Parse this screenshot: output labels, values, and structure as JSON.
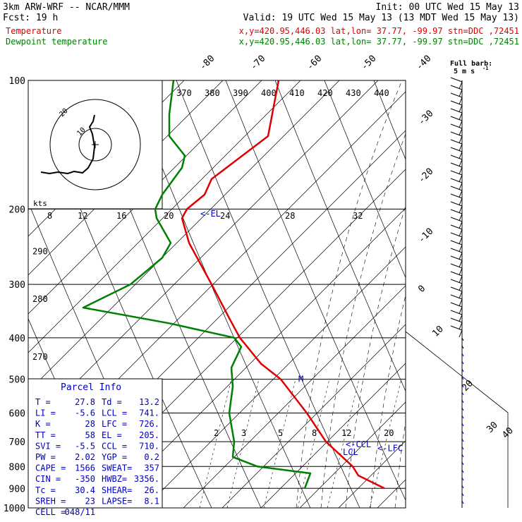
{
  "header": {
    "line1_left": "3km ARW-WRF -- NCAR/MMM",
    "line1_right": "Init: 00 UTC Wed 15 May 13",
    "line2_left": "Fcst:    19 h",
    "line2_right": "Valid: 19 UTC Wed 15 May 13 (13 MDT Wed 15 May 13)",
    "temp_label": "Temperature",
    "dew_label": "Dewpoint temperature",
    "location_info": "x,y=420.95,446.03   lat,lon= 37.77, -99.97   stn=DDC ,72451"
  },
  "colors": {
    "temperature": "#e00000",
    "dewpoint": "#008000",
    "header_text": "#000000",
    "annot": "#0000c0"
  },
  "chart_data": {
    "type": "line",
    "chart_kind": "skew-T log-p sounding",
    "y_axis": "pressure (hPa)",
    "y_scale": "log",
    "ylim": [
      1000,
      100
    ],
    "pressure_ticks": [
      100,
      200,
      300,
      400,
      500,
      600,
      700,
      800,
      900,
      1000
    ],
    "isotherm_labels": [
      -80,
      -70,
      -60,
      -50,
      -40,
      -30,
      -20,
      -10,
      0,
      10,
      20,
      30,
      40
    ],
    "theta_labels": [
      370,
      380,
      390,
      400,
      410,
      420,
      430,
      440
    ],
    "left_theta_labels": [
      {
        "value": "290",
        "p": 255
      },
      {
        "value": "280",
        "p": 330
      },
      {
        "value": "270",
        "p": 450
      }
    ],
    "mixing_ratio_labels": [
      {
        "value": "2",
        "x_at_700": 303
      },
      {
        "value": "3",
        "x_at_700": 342
      },
      {
        "value": "5",
        "x_at_700": 394
      },
      {
        "value": "8",
        "x_at_700": 442
      },
      {
        "value": "12",
        "x_at_700": 484
      },
      {
        "value": "20",
        "x_at_700": 544
      }
    ],
    "wind_speed_labels": [
      "8",
      "12",
      "16",
      "20",
      "24",
      "28",
      "32"
    ],
    "wind_speed_unit": "kts",
    "series": [
      {
        "name": "Temperature",
        "color": "#e00000",
        "points": [
          [
            395,
            100
          ],
          [
            380,
            135
          ],
          [
            300,
            170
          ],
          [
            290,
            185
          ],
          [
            265,
            200
          ],
          [
            258,
            210
          ],
          [
            268,
            240
          ],
          [
            300,
            300
          ],
          [
            325,
            360
          ],
          [
            340,
            400
          ],
          [
            370,
            460
          ],
          [
            398,
            500
          ],
          [
            435,
            600
          ],
          [
            462,
            700
          ],
          [
            500,
            800
          ],
          [
            508,
            840
          ],
          [
            545,
            900
          ]
        ]
      },
      {
        "name": "Dewpoint temperature",
        "color": "#008000",
        "points": [
          [
            246,
            100
          ],
          [
            240,
            120
          ],
          [
            240,
            135
          ],
          [
            262,
            150
          ],
          [
            258,
            160
          ],
          [
            230,
            185
          ],
          [
            220,
            200
          ],
          [
            222,
            210
          ],
          [
            242,
            240
          ],
          [
            230,
            260
          ],
          [
            185,
            300
          ],
          [
            118,
            340
          ],
          [
            240,
            370
          ],
          [
            332,
            400
          ],
          [
            342,
            420
          ],
          [
            328,
            470
          ],
          [
            330,
            520
          ],
          [
            325,
            600
          ],
          [
            332,
            700
          ],
          [
            330,
            760
          ],
          [
            365,
            800
          ],
          [
            440,
            830
          ],
          [
            432,
            900
          ]
        ]
      }
    ],
    "annotations": [
      {
        "label": "<-EL",
        "p": 205,
        "x": 284
      },
      {
        "label": "<-CCL",
        "p": 710,
        "x": 490
      },
      {
        "label": "<-LFC",
        "p": 726,
        "x": 535
      },
      {
        "label": "LCL",
        "p": 741,
        "x": 486
      },
      {
        "label": "M",
        "p": 500,
        "x": 423
      }
    ],
    "wind_barbs_legend": {
      "label": "Full barb:",
      "sublabel": "5 m s",
      "superscript": "-1"
    }
  },
  "parcel_info": {
    "title": "Parcel Info",
    "rows": [
      [
        "T   =",
        "27.8",
        "Td  =",
        "13.2"
      ],
      [
        "LI  =",
        "-5.6",
        "LCL =",
        "741."
      ],
      [
        "K   =",
        "28",
        "LFC =",
        "726."
      ],
      [
        "TT  =",
        "58",
        "EL  =",
        "205."
      ],
      [
        "SVI =",
        "-5.5",
        "CCL =",
        "710."
      ],
      [
        "PW  =",
        "2.02",
        "YGP =",
        "0.2"
      ],
      [
        "CAPE =",
        "1566",
        "SWEAT=",
        "357"
      ],
      [
        "CIN =",
        "-350",
        "HWBZ=",
        "3356."
      ],
      [
        "Tc  =",
        "30.4",
        "SHEAR=",
        "26."
      ],
      [
        "SREH =",
        "23",
        "LAPSE=",
        "8.1"
      ],
      [
        "CELL =",
        "048/11",
        "",
        ""
      ]
    ]
  },
  "hodograph": {
    "ring_labels": [
      "20",
      "10"
    ]
  }
}
